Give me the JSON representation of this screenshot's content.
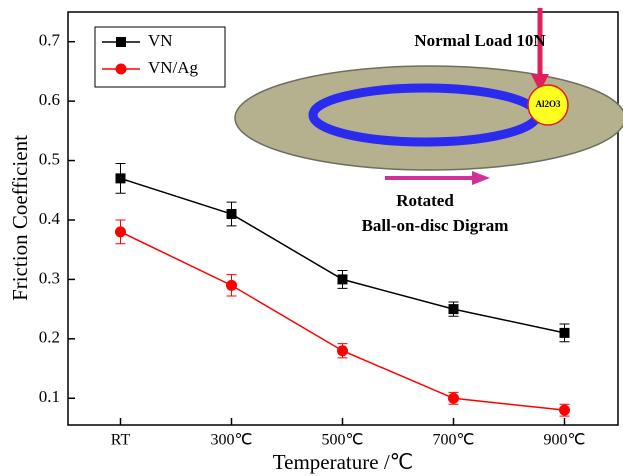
{
  "chart_data": {
    "type": "line",
    "xlabel": "Temperature /℃",
    "ylabel": "Friction Coefficient",
    "categories": [
      "RT",
      "300℃",
      "500℃",
      "700℃",
      "900℃"
    ],
    "series": [
      {
        "name": "VN",
        "color": "#000000",
        "marker": "square",
        "values": [
          0.47,
          0.41,
          0.3,
          0.25,
          0.21
        ],
        "errors": [
          0.025,
          0.02,
          0.015,
          0.012,
          0.015
        ]
      },
      {
        "name": "VN/Ag",
        "color": "#ff0000",
        "marker": "circle",
        "values": [
          0.38,
          0.29,
          0.18,
          0.1,
          0.08
        ],
        "errors": [
          0.02,
          0.018,
          0.012,
          0.01,
          0.01
        ]
      }
    ],
    "ylim": [
      0.055,
      0.75
    ],
    "yticks": [
      0.1,
      0.2,
      0.3,
      0.4,
      0.5,
      0.6,
      0.7
    ],
    "legend": "upper left",
    "annotations": [
      "Normal Load  10N",
      "Rotated",
      "Ball-on-disc Digram",
      "Al2O3"
    ]
  }
}
